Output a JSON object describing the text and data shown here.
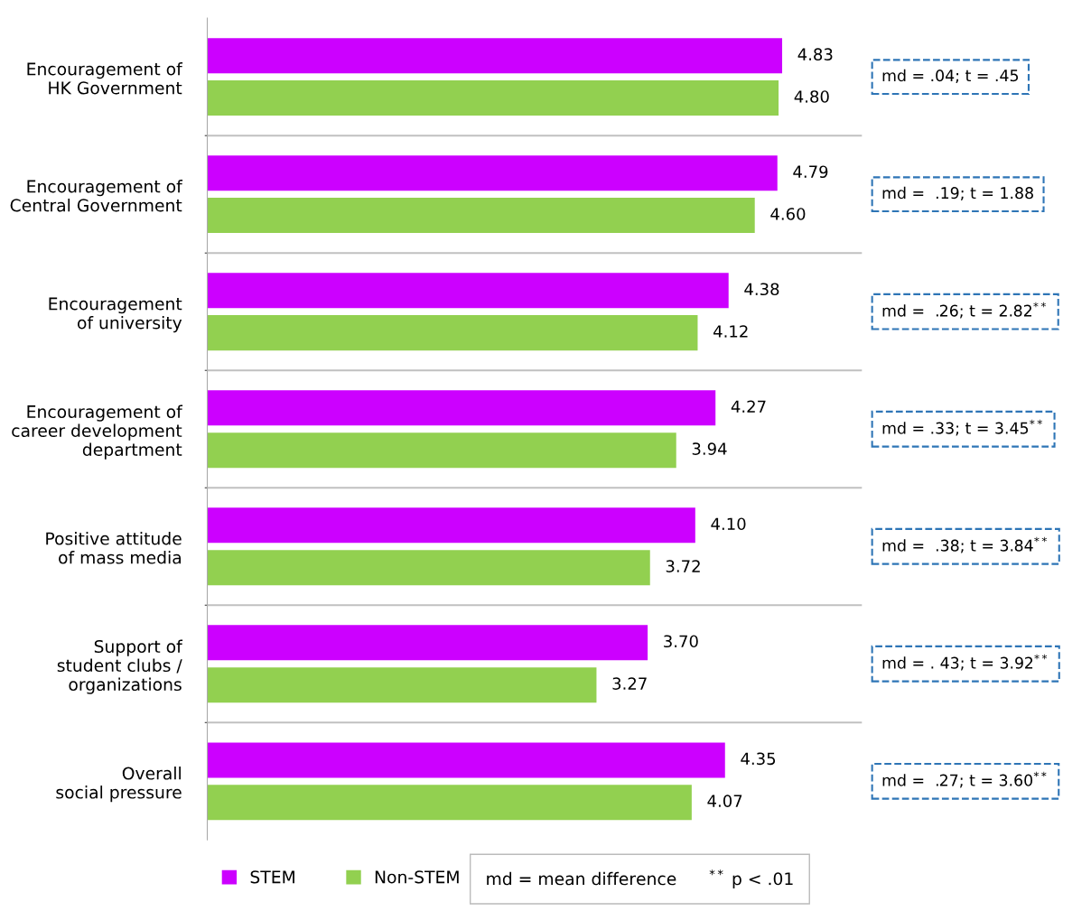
{
  "chart_data": {
    "type": "bar",
    "orientation": "horizontal",
    "categories": [
      "Encouragement of\nHK Government",
      "Encouragement of\nCentral Government",
      "Encouragement\nof university",
      "Encouragement of\ncareer development\ndepartment",
      "Positive attitude\nof mass media",
      "Support of\nstudent clubs /\norganizations",
      "Overall\nsocial pressure"
    ],
    "series": [
      {
        "name": "STEM",
        "color": "#cc00ff",
        "values": [
          4.83,
          4.79,
          4.38,
          4.27,
          4.1,
          3.7,
          4.35
        ],
        "value_labels": [
          "4.83",
          "4.79",
          "4.38",
          "4.27",
          "4.10",
          "3.70",
          "4.35"
        ]
      },
      {
        "name": "Non-STEM",
        "color": "#92d050",
        "values": [
          4.8,
          4.6,
          4.12,
          3.94,
          3.72,
          3.27,
          4.07
        ],
        "value_labels": [
          "4.80",
          "4.60",
          "4.12",
          "3.94",
          "3.72",
          "3.27",
          "4.07"
        ]
      }
    ],
    "xlim": [
      0,
      5.5
    ],
    "tick_labels": "y",
    "grid": "y",
    "legend": "bottom",
    "annotations": [
      "md = .04; t = .45",
      "md =  .19; t = 1.88",
      "md =  .26; t = 2.82$^{**}$",
      "md = .33; t = 3.45$^{**}$",
      "md =  .38; t = 3.84$^{**}$",
      "md = . 43; t = 3.92$^{**}$",
      "md =  .27; t = 3.60$^{**}$",
      "md = mean difference      $^{**}$ p < .01"
    ]
  }
}
